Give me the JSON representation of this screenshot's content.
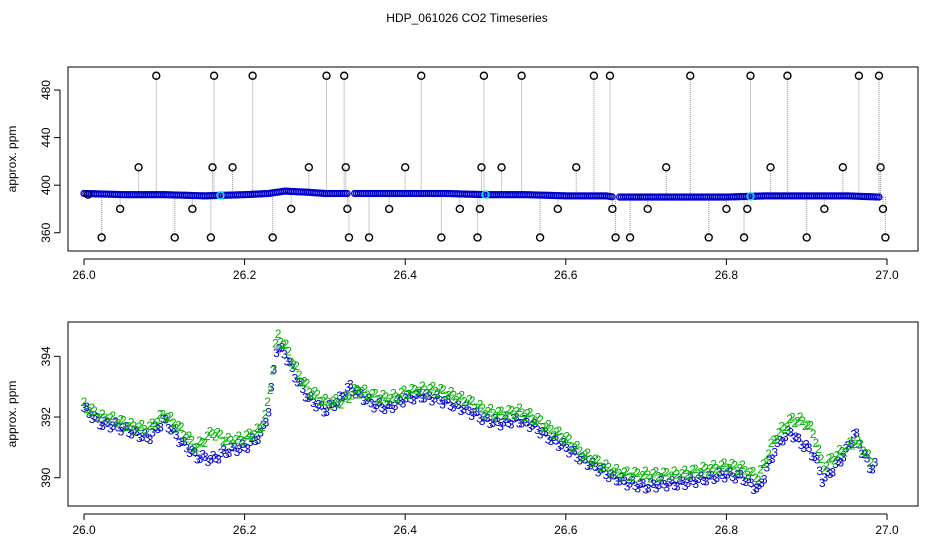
{
  "title": "HDP_061026  CO2 Timeseries",
  "colors": {
    "raw": "#000000",
    "line": "#9a9a9a",
    "blue": "#0000cc",
    "cyan": "#00e5e5",
    "green": "#00b000"
  },
  "chart_data": [
    {
      "type": "scatter",
      "ylabel": "approx. ppm",
      "xlim": [
        26.0,
        27.0
      ],
      "ylim": [
        348,
        496
      ],
      "xticks": [
        "26.0",
        "26.2",
        "26.4",
        "26.6",
        "26.8",
        "27.0"
      ],
      "yticks": [
        "360",
        "400",
        "440",
        "480"
      ],
      "baseline": {
        "x": [
          26.0,
          26.05,
          26.1,
          26.15,
          26.2,
          26.23,
          26.25,
          26.28,
          26.3,
          26.33,
          26.36,
          26.4,
          26.45,
          26.5,
          26.55,
          26.6,
          26.65,
          26.66,
          26.7,
          26.75,
          26.8,
          26.85,
          26.9,
          26.95,
          26.99
        ],
        "y": [
          393,
          392,
          392,
          391,
          392,
          393,
          395,
          394,
          393,
          393,
          393,
          393,
          393,
          392,
          392,
          391,
          391,
          390,
          390,
          390,
          390,
          391,
          391,
          391,
          390
        ]
      },
      "spikes": {
        "x": [
          26.005,
          26.022,
          26.045,
          26.068,
          26.09,
          26.113,
          26.135,
          26.158,
          26.16,
          26.162,
          26.185,
          26.21,
          26.235,
          26.258,
          26.28,
          26.302,
          26.324,
          26.326,
          26.328,
          26.33,
          26.355,
          26.38,
          26.4,
          26.42,
          26.445,
          26.468,
          26.49,
          26.493,
          26.495,
          26.498,
          26.52,
          26.545,
          26.568,
          26.59,
          26.613,
          26.635,
          26.655,
          26.658,
          26.662,
          26.68,
          26.702,
          26.725,
          26.755,
          26.778,
          26.8,
          26.822,
          26.826,
          26.83,
          26.855,
          26.876,
          26.9,
          26.922,
          26.945,
          26.965,
          26.99,
          26.992,
          26.995,
          26.998
        ],
        "y": [
          392,
          356,
          380,
          415,
          492,
          356,
          380,
          356,
          415,
          492,
          415,
          492,
          356,
          380,
          415,
          492,
          492,
          415,
          380,
          356,
          356,
          380,
          415,
          492,
          356,
          380,
          356,
          380,
          415,
          492,
          415,
          492,
          356,
          380,
          415,
          492,
          492,
          380,
          356,
          356,
          380,
          415,
          492,
          356,
          380,
          356,
          380,
          492,
          415,
          492,
          356,
          380,
          415,
          492,
          492,
          415,
          380,
          356
        ]
      },
      "highlights_x": [
        26.17,
        26.5,
        26.83
      ]
    },
    {
      "type": "scatter",
      "ylabel": "approx. ppm",
      "xlim": [
        26.0,
        27.0
      ],
      "ylim": [
        389.2,
        395.0
      ],
      "xticks": [
        "26.0",
        "26.2",
        "26.4",
        "26.6",
        "26.8",
        "27.0"
      ],
      "yticks": [
        "390",
        "392",
        "394"
      ],
      "series": [
        {
          "marker": "3",
          "x": [
            26.0,
            26.02,
            26.04,
            26.06,
            26.08,
            26.1,
            26.12,
            26.14,
            26.16,
            26.18,
            26.2,
            26.22,
            26.23,
            26.24,
            26.25,
            26.26,
            26.27,
            26.28,
            26.3,
            26.32,
            26.33,
            26.34,
            26.36,
            26.38,
            26.4,
            26.42,
            26.44,
            26.46,
            26.48,
            26.5,
            26.52,
            26.54,
            26.56,
            26.58,
            26.6,
            26.62,
            26.64,
            26.66,
            26.68,
            26.7,
            26.72,
            26.74,
            26.76,
            26.78,
            26.8,
            26.82,
            26.84,
            26.86,
            26.87,
            26.88,
            26.89,
            26.9,
            26.91,
            26.92,
            26.93,
            26.94,
            26.95,
            26.96,
            26.97,
            26.98,
            26.985
          ],
          "y": [
            392.3,
            391.8,
            391.7,
            391.5,
            391.3,
            391.9,
            391.2,
            390.7,
            390.6,
            390.9,
            391.0,
            391.4,
            392.2,
            394.3,
            394.1,
            393.5,
            393.0,
            392.6,
            392.2,
            392.6,
            393.0,
            392.8,
            392.4,
            392.3,
            392.6,
            392.7,
            392.6,
            392.4,
            392.2,
            391.9,
            391.8,
            391.9,
            391.7,
            391.3,
            391.0,
            390.6,
            390.3,
            390.0,
            389.8,
            389.7,
            389.8,
            389.8,
            389.9,
            390.0,
            390.1,
            390.0,
            389.6,
            390.9,
            391.3,
            391.5,
            391.2,
            391.0,
            390.7,
            389.9,
            390.2,
            390.5,
            390.9,
            391.5,
            390.8,
            390.3,
            390.4
          ]
        },
        {
          "marker": "2",
          "x": [
            26.0,
            26.02,
            26.04,
            26.06,
            26.08,
            26.1,
            26.12,
            26.14,
            26.16,
            26.18,
            26.2,
            26.22,
            26.23,
            26.24,
            26.25,
            26.26,
            26.27,
            26.28,
            26.3,
            26.32,
            26.33,
            26.34,
            26.36,
            26.38,
            26.4,
            26.42,
            26.44,
            26.46,
            26.48,
            26.5,
            26.52,
            26.54,
            26.56,
            26.58,
            26.6,
            26.62,
            26.64,
            26.66,
            26.68,
            26.7,
            26.72,
            26.74,
            26.76,
            26.78,
            26.8,
            26.82,
            26.84,
            26.86,
            26.87,
            26.88,
            26.89,
            26.9,
            26.91,
            26.92,
            26.93,
            26.94,
            26.95,
            26.96,
            26.97,
            26.98
          ],
          "y": [
            392.4,
            392.0,
            391.9,
            391.7,
            391.6,
            392.1,
            391.6,
            391.0,
            391.5,
            391.2,
            391.3,
            391.6,
            392.5,
            394.7,
            394.4,
            393.8,
            393.3,
            392.9,
            392.5,
            392.5,
            392.7,
            392.9,
            392.7,
            392.6,
            392.8,
            392.9,
            392.9,
            392.7,
            392.5,
            392.2,
            392.1,
            392.2,
            392.0,
            391.6,
            391.3,
            390.8,
            390.5,
            390.2,
            390.1,
            390.1,
            390.1,
            390.1,
            390.2,
            390.3,
            390.4,
            390.3,
            390.0,
            391.3,
            391.6,
            391.9,
            391.9,
            391.8,
            391.4,
            390.3,
            390.6,
            390.8,
            391.0,
            391.2,
            391.0,
            390.5
          ]
        }
      ]
    }
  ]
}
